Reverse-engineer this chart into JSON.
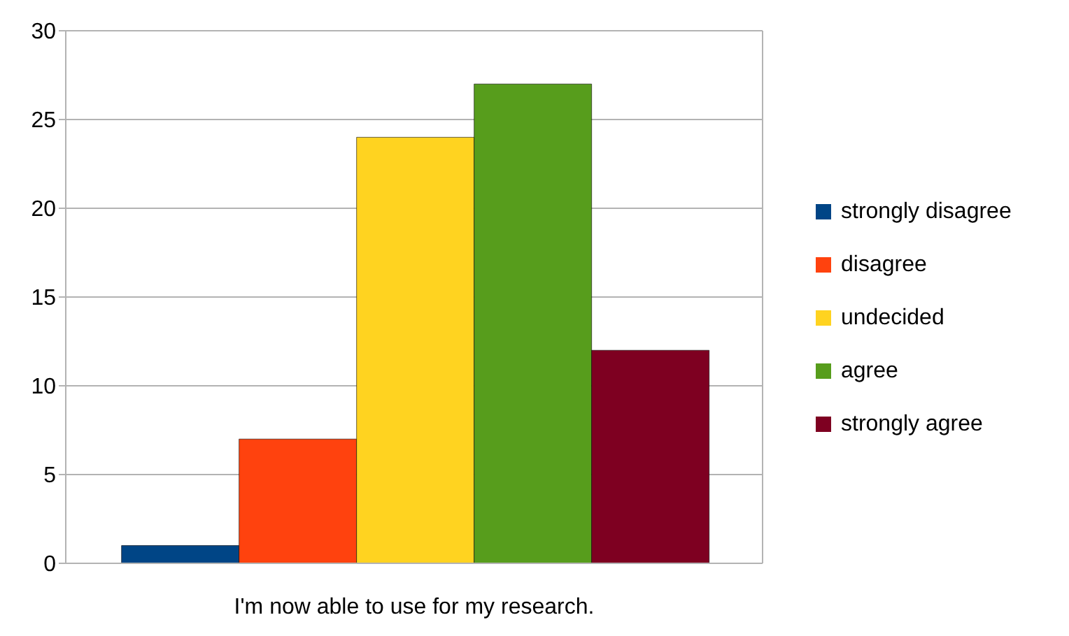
{
  "chart_data": {
    "type": "bar",
    "xlabel": "I'm now able to use for my research.",
    "categories": [
      null
    ],
    "series": [
      {
        "name": "strongly disagree",
        "color": "#004586",
        "values": [
          1
        ]
      },
      {
        "name": "disagree",
        "color": "#ff420e",
        "values": [
          7
        ]
      },
      {
        "name": "undecided",
        "color": "#ffd320",
        "values": [
          24
        ]
      },
      {
        "name": "agree",
        "color": "#579d1c",
        "values": [
          27
        ]
      },
      {
        "name": "strongly agree",
        "color": "#7e0021",
        "values": [
          12
        ]
      }
    ],
    "ylim": [
      0,
      30
    ],
    "yticks": [
      0,
      5,
      10,
      15,
      20,
      25,
      30
    ],
    "grid": "y",
    "legend": "right"
  }
}
